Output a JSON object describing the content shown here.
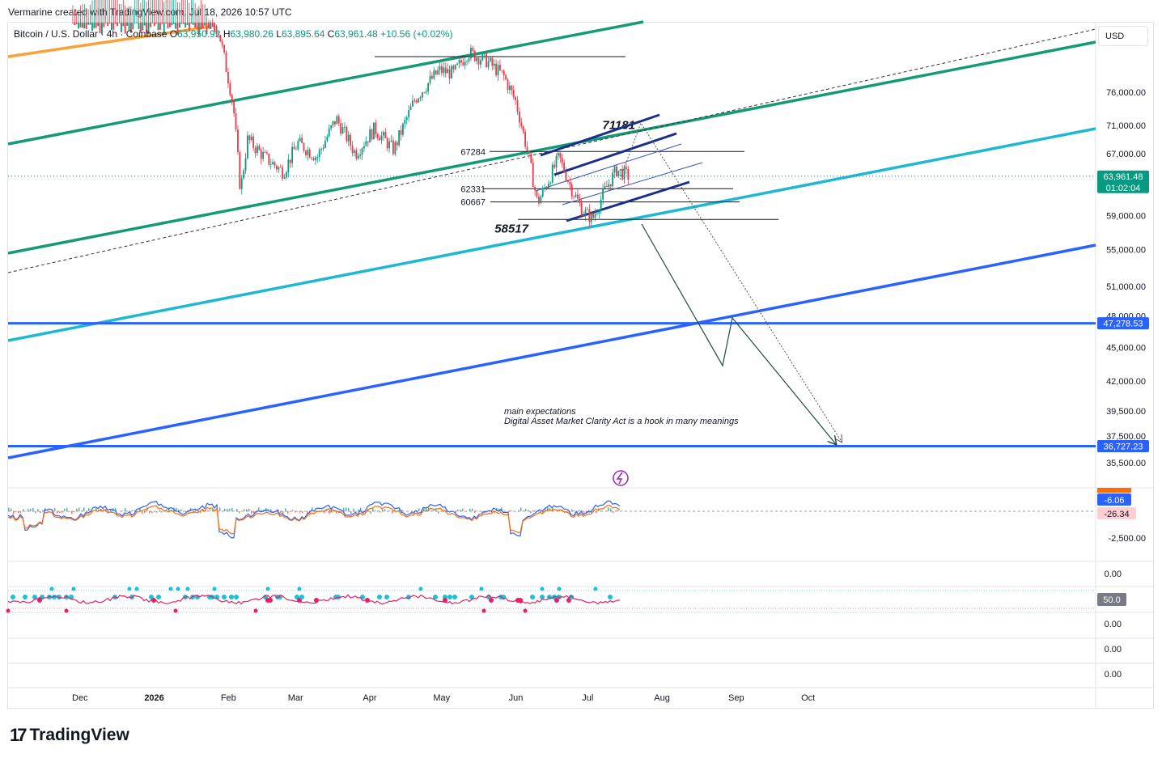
{
  "header": {
    "credit": "Vermarine created with TradingView.com, Jul 18, 2026 10:57 UTC"
  },
  "legend": {
    "symbol": "Bitcoin / U.S. Dollar · 4h · Coinbase",
    "open_label": "O",
    "open": "63,950.92",
    "high_label": "H",
    "high": "63,980.26",
    "low_label": "L",
    "low": "63,895.64",
    "close_label": "C",
    "close": "63,961.48",
    "change": "+10.56 (+0.02%)"
  },
  "currency_button": "USD",
  "brand": {
    "logo": "17",
    "name": "TradingView"
  },
  "colors": {
    "up": "#089981",
    "down": "#f23645",
    "channel_green": "#159a77",
    "cyan": "#1fb8d2",
    "blue": "#2962ff",
    "navy": "#1a2f8a",
    "orange": "#f7a23b",
    "dark": "#131722"
  },
  "chart_data": {
    "type": "line",
    "title": "",
    "xlabel": "",
    "ylabel": "",
    "x_ticks": [
      "Dec",
      "2026",
      "Feb",
      "Mar",
      "Apr",
      "May",
      "Jun",
      "Jul",
      "Aug",
      "Sep",
      "Oct"
    ],
    "y_ticks": [
      "76,000.00",
      "71,000.00",
      "67,000.00",
      "59,000.00",
      "55,000.00",
      "51,000.00",
      "48,000.00",
      "45,000.00",
      "42,000.00",
      "39,500.00",
      "37,500.00",
      "35,500.00"
    ],
    "price_scale": "log",
    "last_price": {
      "value": "63,961.48",
      "countdown": "01:02:04"
    },
    "horizontal_lines": [
      {
        "label": "47,278.53",
        "value": 47278.53
      },
      {
        "label": "36,727.23",
        "value": 36727.23
      }
    ],
    "levels": [
      {
        "label": "71181",
        "value": 71181
      },
      {
        "label": "67284",
        "value": 67284
      },
      {
        "label": "62331",
        "value": 62331
      },
      {
        "label": "60667",
        "value": 60667
      },
      {
        "label": "58517",
        "value": 58517
      }
    ],
    "annotation": {
      "line1": "main expectations",
      "line2": "Digital Asset Market Clarity Act is a hook in many meanings"
    },
    "series": [
      {
        "values": [
          {
            "date": "2025-11-28",
            "close": 91000
          },
          {
            "date": "2025-12-08",
            "close": 93500
          },
          {
            "date": "2025-12-20",
            "close": 92500
          },
          {
            "date": "2026-01-05",
            "close": 94000
          },
          {
            "date": "2026-01-20",
            "close": 92000
          },
          {
            "date": "2026-01-28",
            "close": 86000
          },
          {
            "date": "2026-02-03",
            "close": 74000
          },
          {
            "date": "2026-02-06",
            "close": 62000
          },
          {
            "date": "2026-02-09",
            "close": 69000
          },
          {
            "date": "2026-02-16",
            "close": 66500
          },
          {
            "date": "2026-02-24",
            "close": 64500
          },
          {
            "date": "2026-03-02",
            "close": 68500
          },
          {
            "date": "2026-03-10",
            "close": 66500
          },
          {
            "date": "2026-03-18",
            "close": 72000
          },
          {
            "date": "2026-03-26",
            "close": 67000
          },
          {
            "date": "2026-04-03",
            "close": 70500
          },
          {
            "date": "2026-04-11",
            "close": 67500
          },
          {
            "date": "2026-04-20",
            "close": 75000
          },
          {
            "date": "2026-04-30",
            "close": 79500
          },
          {
            "date": "2026-05-06",
            "close": 79000
          },
          {
            "date": "2026-05-12",
            "close": 82500
          },
          {
            "date": "2026-05-20",
            "close": 81000
          },
          {
            "date": "2026-05-27",
            "close": 78500
          },
          {
            "date": "2026-06-01",
            "close": 74500
          },
          {
            "date": "2026-06-06",
            "close": 67000
          },
          {
            "date": "2026-06-10",
            "close": 60500
          },
          {
            "date": "2026-06-14",
            "close": 63000
          },
          {
            "date": "2026-06-19",
            "close": 66500
          },
          {
            "date": "2026-06-24",
            "close": 62500
          },
          {
            "date": "2026-06-29",
            "close": 59500
          },
          {
            "date": "2026-07-03",
            "close": 58600
          },
          {
            "date": "2026-07-08",
            "close": 62000
          },
          {
            "date": "2026-07-13",
            "close": 64800
          },
          {
            "date": "2026-07-18",
            "close": 63961.48
          }
        ]
      }
    ],
    "indicator1": {
      "y_ticks": [
        "-2,500.00"
      ],
      "labels": [
        "-6.06",
        "-26.34"
      ]
    },
    "indicator2": {
      "y_ticks": [
        "0.00",
        "0.00",
        "0.00",
        "0.00",
        "0.00"
      ],
      "labels": [
        "50.0"
      ]
    }
  }
}
